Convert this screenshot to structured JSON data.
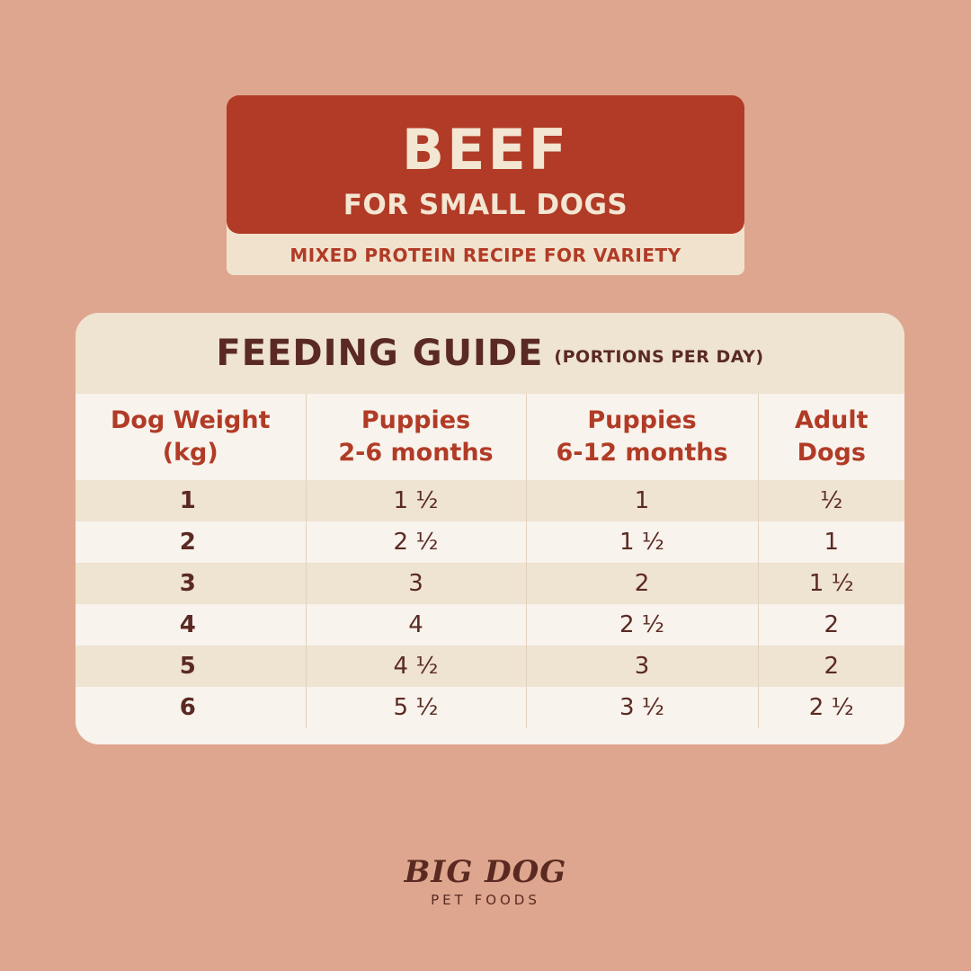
{
  "header": {
    "title": "BEEF",
    "subtitle": "FOR SMALL DOGS",
    "tagline": "MIXED PROTEIN RECIPE FOR VARIETY"
  },
  "guide": {
    "title": "FEEDING GUIDE",
    "note": "(PORTIONS PER DAY)",
    "columns": [
      {
        "line1": "Dog Weight",
        "line2": "(kg)"
      },
      {
        "line1": "Puppies",
        "line2": "2-6 months"
      },
      {
        "line1": "Puppies",
        "line2": "6-12 months"
      },
      {
        "line1": "Adult",
        "line2": "Dogs"
      }
    ],
    "rows": [
      [
        "1",
        "1 ½",
        "1",
        "½"
      ],
      [
        "2",
        "2 ½",
        "1 ½",
        "1"
      ],
      [
        "3",
        "3",
        "2",
        "1 ½"
      ],
      [
        "4",
        "4",
        "2 ½",
        "2"
      ],
      [
        "5",
        "4 ½",
        "3",
        "2"
      ],
      [
        "6",
        "5 ½",
        "3 ½",
        "2 ½"
      ]
    ]
  },
  "brand": {
    "name": "BIG DOG",
    "sub": "PET FOODS"
  },
  "colors": {
    "background": "#dea68e",
    "accent": "#b13b26",
    "cream": "#f1e2cd",
    "text_dark": "#5a2a22"
  }
}
